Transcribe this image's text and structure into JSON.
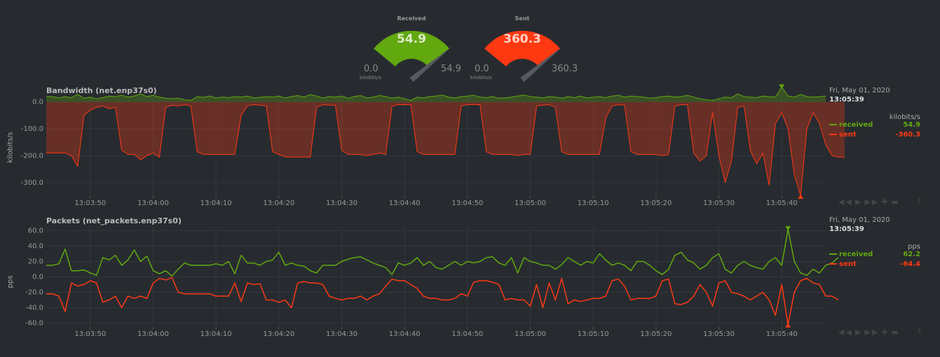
{
  "gauges": [
    {
      "title": "Received",
      "value": "54.9",
      "min": "0.0",
      "max": "54.9",
      "units": "kilobits/s",
      "color": "#62a80f",
      "fraction": 1.0
    },
    {
      "title": "Sent",
      "value": "360.3",
      "min": "0.0",
      "max": "360.3",
      "units": "kilobits/s",
      "color": "#fe3912",
      "fraction": 1.0
    }
  ],
  "colors": {
    "received": "#62a80f",
    "sent": "#fe3912"
  },
  "chart_data": [
    {
      "type": "area",
      "title": "Bandwidth (net.enp37s0)",
      "ylabel": "kilobits/s",
      "ylim": [
        -350,
        20
      ],
      "yticks": [
        "0.0",
        "-100.0",
        "-200.0",
        "-300.0"
      ],
      "x_start": "13:03:43",
      "x_step_seconds": 1,
      "xlim": [
        "13:03:43",
        "13:05:47"
      ],
      "xticks": [
        "13:03:50",
        "13:04:00",
        "13:04:10",
        "13:04:20",
        "13:04:30",
        "13:04:40",
        "13:04:50",
        "13:05:00",
        "13:05:10",
        "13:05:20",
        "13:05:30",
        "13:05:40"
      ],
      "grid": true,
      "legend": {
        "date": "Fri, May 01, 2020",
        "time": "13:05:39",
        "units": "kilobits/s",
        "position": "right"
      },
      "series": [
        {
          "name": "received",
          "legend_value": "54.9",
          "values": [
            20,
            20,
            15,
            20,
            16,
            28,
            14,
            18,
            12,
            16,
            22,
            20,
            25,
            18,
            22,
            30,
            20,
            25,
            18,
            14,
            12,
            14,
            8,
            6,
            20,
            17,
            22,
            15,
            18,
            16,
            20,
            18,
            22,
            15,
            17,
            20,
            18,
            22,
            15,
            20,
            24,
            18,
            28,
            22,
            15,
            20,
            18,
            22,
            14,
            20,
            24,
            15,
            18,
            24,
            20,
            14,
            18,
            12,
            6,
            18,
            15,
            20,
            22,
            26,
            18,
            15,
            20,
            22,
            25,
            18,
            16,
            20,
            14,
            15,
            18,
            22,
            26,
            20,
            18,
            15,
            20,
            18,
            14,
            20,
            16,
            22,
            15,
            18,
            20,
            16,
            22,
            25,
            18,
            22,
            20,
            18,
            14,
            16,
            20,
            22,
            18,
            20,
            25,
            18,
            12,
            8,
            6,
            12,
            18,
            16,
            30,
            20,
            18,
            16,
            22,
            20,
            18,
            55,
            22,
            18,
            28,
            20,
            18,
            20,
            22
          ]
        },
        {
          "name": "sent",
          "legend_value": "-360.3",
          "values": [
            -190,
            -190,
            -190,
            -190,
            -200,
            -240,
            -50,
            -30,
            -20,
            -15,
            -25,
            -20,
            -180,
            -195,
            -195,
            -215,
            -200,
            -190,
            -205,
            -20,
            -12,
            -15,
            -10,
            -15,
            -185,
            -195,
            -195,
            -195,
            -195,
            -195,
            -195,
            -50,
            -15,
            -10,
            -12,
            -15,
            -185,
            -195,
            -205,
            -205,
            -205,
            -205,
            -205,
            -20,
            -10,
            -12,
            -12,
            -180,
            -195,
            -195,
            -195,
            -200,
            -195,
            -190,
            -195,
            -15,
            -10,
            -10,
            -10,
            -185,
            -195,
            -195,
            -195,
            -195,
            -195,
            -195,
            -15,
            -10,
            -10,
            -10,
            -185,
            -195,
            -195,
            -195,
            -195,
            -200,
            -195,
            -195,
            -15,
            -12,
            -10,
            -20,
            -185,
            -195,
            -195,
            -195,
            -195,
            -195,
            -195,
            -60,
            -15,
            -10,
            -12,
            -185,
            -195,
            -195,
            -195,
            -195,
            -200,
            -195,
            -15,
            -10,
            -10,
            -190,
            -220,
            -200,
            -40,
            -200,
            -300,
            -220,
            -20,
            -15,
            -180,
            -230,
            -190,
            -310,
            -80,
            -40,
            -100,
            -270,
            -350,
            -100,
            -40,
            -80,
            -160,
            -200,
            -205,
            -205
          ]
        }
      ]
    },
    {
      "type": "line",
      "title": "Packets (net_packets.enp37s0)",
      "ylabel": "pps",
      "ylim": [
        -65,
        65
      ],
      "yticks": [
        "60.0",
        "40.0",
        "20.0",
        "0.0",
        "-20.0",
        "-40.0",
        "-60.0"
      ],
      "x_start": "13:03:43",
      "x_step_seconds": 1,
      "xlim": [
        "13:03:43",
        "13:05:47"
      ],
      "xticks": [
        "13:03:50",
        "13:04:00",
        "13:04:10",
        "13:04:20",
        "13:04:30",
        "13:04:40",
        "13:04:50",
        "13:05:00",
        "13:05:10",
        "13:05:20",
        "13:05:30",
        "13:05:40"
      ],
      "grid": true,
      "legend": {
        "date": "Fri, May 01, 2020",
        "time": "13:05:39",
        "units": "pps",
        "position": "right"
      },
      "series": [
        {
          "name": "received",
          "legend_value": "62.2",
          "values": [
            15,
            15,
            17,
            36,
            8,
            8,
            9,
            5,
            2,
            25,
            22,
            28,
            15,
            22,
            35,
            20,
            27,
            8,
            4,
            8,
            1,
            10,
            18,
            15,
            15,
            15,
            15,
            17,
            15,
            20,
            4,
            28,
            18,
            18,
            15,
            20,
            22,
            32,
            15,
            18,
            15,
            14,
            8,
            5,
            15,
            15,
            15,
            20,
            23,
            25,
            26,
            22,
            18,
            15,
            12,
            3,
            18,
            15,
            18,
            25,
            15,
            20,
            12,
            10,
            15,
            20,
            15,
            20,
            18,
            20,
            25,
            26,
            18,
            15,
            25,
            5,
            25,
            20,
            18,
            15,
            15,
            10,
            16,
            25,
            20,
            15,
            20,
            18,
            30,
            22,
            15,
            18,
            15,
            8,
            20,
            20,
            15,
            8,
            3,
            10,
            28,
            32,
            22,
            18,
            10,
            15,
            25,
            30,
            10,
            5,
            15,
            20,
            15,
            12,
            10,
            20,
            25,
            15,
            62,
            20,
            5,
            2,
            10,
            5,
            15,
            18,
            25
          ]
        },
        {
          "name": "sent",
          "legend_value": "-64.4",
          "values": [
            -22,
            -22,
            -25,
            -45,
            -8,
            -12,
            -10,
            -5,
            -8,
            -33,
            -30,
            -25,
            -40,
            -25,
            -28,
            -25,
            -28,
            -8,
            -2,
            -4,
            -1,
            -20,
            -22,
            -22,
            -22,
            -22,
            -22,
            -25,
            -25,
            -25,
            -8,
            -32,
            -8,
            -10,
            -9,
            -30,
            -30,
            -33,
            -30,
            -40,
            -8,
            -6,
            -8,
            -8,
            -10,
            -25,
            -28,
            -30,
            -28,
            -28,
            -25,
            -30,
            -25,
            -22,
            -12,
            -3,
            -5,
            -5,
            -10,
            -15,
            -25,
            -28,
            -28,
            -30,
            -30,
            -28,
            -22,
            -25,
            -7,
            -5,
            -5,
            -7,
            -10,
            -30,
            -28,
            -30,
            -30,
            -38,
            -10,
            -40,
            -8,
            -30,
            -2,
            -35,
            -30,
            -32,
            -30,
            -28,
            -28,
            -25,
            -5,
            -3,
            -12,
            -30,
            -28,
            -28,
            -28,
            -25,
            -5,
            -3,
            -35,
            -36,
            -33,
            -25,
            -10,
            -20,
            -38,
            -8,
            -5,
            -20,
            -22,
            -25,
            -30,
            -25,
            -20,
            -30,
            -50,
            -10,
            -62,
            -20,
            -5,
            -2,
            -8,
            -10,
            -25,
            -25,
            -30
          ]
        }
      ]
    }
  ],
  "toolbox": {
    "prev": "◀◀",
    "play": "▶",
    "next": "▶▶",
    "zoom_in": "✚",
    "zoom_out": "▬",
    "resize": "⇕"
  }
}
